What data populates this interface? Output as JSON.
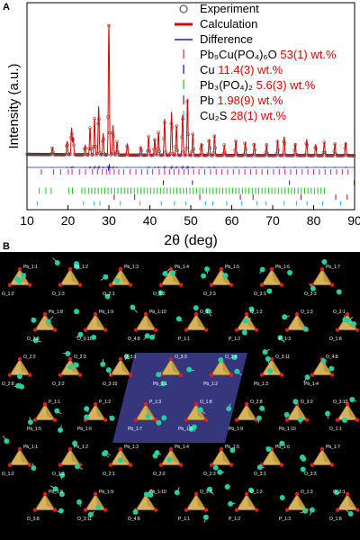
{
  "panel_a_label": "A",
  "panel_b_label": "B",
  "chart_data": {
    "type": "scatter",
    "xlabel": "2θ (deg)",
    "ylabel": "Intensity (a.u.)",
    "xlim": [
      10,
      90
    ],
    "xticks": [
      10,
      20,
      30,
      40,
      50,
      60,
      70,
      80,
      90
    ],
    "ylim": [
      0,
      1
    ],
    "legend_position": "top-right",
    "legend": [
      {
        "name": "Experiment",
        "marker": "open-circle",
        "color": "#333333"
      },
      {
        "name": "Calculation",
        "marker": "line",
        "color": "#e00000"
      },
      {
        "name": "Difference",
        "marker": "line",
        "color": "#2020c8"
      }
    ],
    "phases": [
      {
        "formula": "Pb₉Cu(PO₄)₆O",
        "wt": "53(1) wt.%",
        "color": "#d0208a",
        "ticks": [
          13.5,
          16.5,
          18.2,
          20.1,
          21.0,
          22.8,
          24.3,
          26.0,
          27.2,
          28.4,
          29.4,
          30.2,
          31.3,
          32.4,
          33.6,
          35.2,
          36.6,
          38.0,
          39.4,
          40.7,
          42.3,
          43.6,
          44.8,
          45.9,
          47.1,
          48.3,
          49.4,
          50.7,
          52.0,
          53.4,
          54.8,
          56.2,
          57.6,
          59.0,
          60.4,
          61.8,
          63.2,
          64.6,
          66.0,
          67.4,
          68.8,
          70.2,
          71.6,
          73.0,
          74.4,
          75.8,
          77.2,
          78.6,
          80.0,
          81.4,
          82.8,
          84.2,
          85.6,
          87.0,
          88.4
        ]
      },
      {
        "formula": "Cu",
        "wt": "11.4(3) wt.%",
        "color": "#1010a0",
        "ticks": [
          43.3,
          50.4,
          74.1,
          89.9
        ]
      },
      {
        "formula": "Pb₃(PO₄)₂",
        "wt": "5.6(3) wt.%",
        "color": "#20c020",
        "ticks": [
          13.0,
          14.6,
          15.9,
          20.2,
          21.1,
          23.4,
          24.1,
          25.1,
          25.8,
          26.6,
          27.4,
          28.2,
          29.0,
          29.8,
          30.6,
          31.4,
          32.2,
          33.0,
          33.8,
          34.6,
          35.4,
          36.2,
          37.0,
          37.8,
          38.6,
          39.4,
          40.2,
          41.0,
          41.8,
          42.6,
          43.4,
          44.2,
          45.0,
          45.8,
          46.6,
          47.4,
          48.2,
          49.0,
          49.8,
          50.6,
          51.4,
          52.2,
          53.0,
          53.8,
          54.6,
          55.4,
          56.2,
          57.0,
          57.8,
          58.6,
          59.4,
          60.2,
          61.0,
          61.8,
          62.6,
          63.4,
          64.2,
          65.0,
          65.8,
          66.6,
          67.4,
          68.2,
          69.0,
          69.8,
          70.6,
          71.4,
          72.2,
          73.0,
          73.8,
          74.6,
          75.4,
          76.2,
          77.0,
          77.8,
          78.6,
          79.4,
          80.2,
          81.0,
          81.8,
          82.6
        ]
      },
      {
        "formula": "Pb",
        "wt": "1.98(9) wt.%",
        "color": "#9a0d3a",
        "ticks": [
          31.3,
          36.3,
          52.2,
          62.1,
          65.2,
          76.9,
          85.4,
          88.2
        ]
      },
      {
        "formula": "Cu₂S",
        "wt": "28(1) wt.%",
        "color": "#3aa0e0",
        "ticks": [
          12.5,
          23.8,
          26.4,
          27.8,
          32.8,
          37.6,
          42.8,
          46.0,
          48.8,
          53.6,
          55.4,
          58.8,
          62.4,
          66.2,
          68.4,
          72.8,
          75.8,
          78.4,
          82.2,
          86.6
        ]
      }
    ],
    "peaks": [
      {
        "x": 16.2,
        "y": 0.05
      },
      {
        "x": 19.8,
        "y": 0.1
      },
      {
        "x": 20.9,
        "y": 0.2
      },
      {
        "x": 21.3,
        "y": 0.13
      },
      {
        "x": 24.2,
        "y": 0.07
      },
      {
        "x": 25.4,
        "y": 0.2
      },
      {
        "x": 26.5,
        "y": 0.27
      },
      {
        "x": 27.5,
        "y": 0.36
      },
      {
        "x": 28.6,
        "y": 0.16
      },
      {
        "x": 30.0,
        "y": 0.97
      },
      {
        "x": 31.0,
        "y": 0.22
      },
      {
        "x": 32.0,
        "y": 0.1
      },
      {
        "x": 34.5,
        "y": 0.08
      },
      {
        "x": 37.8,
        "y": 0.06
      },
      {
        "x": 39.7,
        "y": 0.14
      },
      {
        "x": 41.2,
        "y": 0.12
      },
      {
        "x": 42.1,
        "y": 0.17
      },
      {
        "x": 43.6,
        "y": 0.27
      },
      {
        "x": 45.3,
        "y": 0.32
      },
      {
        "x": 46.5,
        "y": 0.22
      },
      {
        "x": 48.0,
        "y": 0.3
      },
      {
        "x": 49.2,
        "y": 0.42
      },
      {
        "x": 50.5,
        "y": 0.16
      },
      {
        "x": 52.6,
        "y": 0.09
      },
      {
        "x": 54.5,
        "y": 0.12
      },
      {
        "x": 55.8,
        "y": 0.15
      },
      {
        "x": 58.2,
        "y": 0.08
      },
      {
        "x": 61.0,
        "y": 0.11
      },
      {
        "x": 63.3,
        "y": 0.1
      },
      {
        "x": 65.5,
        "y": 0.09
      },
      {
        "x": 68.5,
        "y": 0.08
      },
      {
        "x": 71.2,
        "y": 0.11
      },
      {
        "x": 72.8,
        "y": 0.14
      },
      {
        "x": 75.5,
        "y": 0.09
      },
      {
        "x": 78.3,
        "y": 0.12
      },
      {
        "x": 80.5,
        "y": 0.08
      },
      {
        "x": 82.6,
        "y": 0.1
      },
      {
        "x": 85.2,
        "y": 0.09
      },
      {
        "x": 87.8,
        "y": 0.1
      }
    ]
  },
  "structure": {
    "background_color": "#000000",
    "unit_cell_color": "#5a5ad0",
    "pb_color": "#20d0a0",
    "p_color": "#f0c040",
    "o_color": "#e02020",
    "polyhedron_color": "#d8b25a",
    "labels": [
      "Pb_1:1",
      "Pb_1:2",
      "Pb_1:3",
      "Pb_1:4",
      "Pb_1:5",
      "Pb_1:6",
      "Pb_1:7",
      "Pb_1:8",
      "Pb_1:9",
      "Pb_1:10",
      "O_1:1",
      "O_1:2",
      "O_1:3",
      "O_2:1",
      "O_2:2",
      "O_2:3",
      "O_3:1",
      "O_3:3",
      "O_3:8",
      "O_3:11",
      "O_4:8",
      "P_1:1",
      "P_1:2",
      "P_1:3",
      "O_1:8",
      "O_2:8",
      "O_3:2",
      "O_3:10"
    ]
  }
}
